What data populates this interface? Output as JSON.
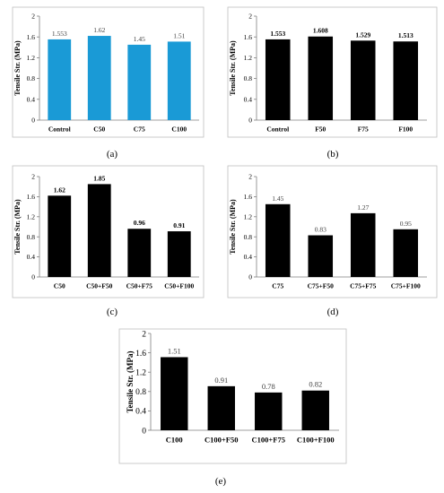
{
  "chart_data": [
    {
      "type": "bar",
      "panel_label": "(a)",
      "categories": [
        "Control",
        "C50",
        "C75",
        "C100"
      ],
      "values": [
        1.553,
        1.62,
        1.45,
        1.51
      ],
      "value_labels": [
        "1.553",
        "1.62",
        "1.45",
        "1.51"
      ],
      "ylabel": "Tensile Str. (MPa)",
      "ylim": [
        0,
        2
      ],
      "yticks": [
        "0",
        "0.4",
        "0.8",
        "1.2",
        "1.6",
        "2"
      ],
      "bar_color": "#1a9ad6",
      "grid": false
    },
    {
      "type": "bar",
      "panel_label": "(b)",
      "categories": [
        "Control",
        "F50",
        "F75",
        "F100"
      ],
      "values": [
        1.553,
        1.608,
        1.529,
        1.513
      ],
      "value_labels": [
        "1.553",
        "1.608",
        "1.529",
        "1.513"
      ],
      "ylabel": "Tensile Str. (MPa)",
      "ylim": [
        0,
        2
      ],
      "yticks": [
        "0",
        "0.4",
        "0.8",
        "1.2",
        "1.6",
        "2"
      ],
      "bar_color": "#000000",
      "grid": false
    },
    {
      "type": "bar",
      "panel_label": "(c)",
      "categories": [
        "C50",
        "C50+F50",
        "C50+F75",
        "C50+F100"
      ],
      "values": [
        1.62,
        1.85,
        0.96,
        0.91
      ],
      "value_labels": [
        "1.62",
        "1.85",
        "0.96",
        "0.91"
      ],
      "ylabel": "Tensile Str. (MPa)",
      "ylim": [
        0,
        2
      ],
      "yticks": [
        "0",
        "0.4",
        "0.8",
        "1.2",
        "1.6",
        "2"
      ],
      "bar_color": "#000000",
      "grid": false
    },
    {
      "type": "bar",
      "panel_label": "(d)",
      "categories": [
        "C75",
        "C75+F50",
        "C75+F75",
        "C75+F100"
      ],
      "values": [
        1.45,
        0.83,
        1.27,
        0.95
      ],
      "value_labels": [
        "1.45",
        "0.83",
        "1.27",
        "0.95"
      ],
      "ylabel": "Tensile Str. (MPa)",
      "ylim": [
        0,
        2
      ],
      "yticks": [
        "0",
        "0.4",
        "0.8",
        "1.2",
        "1.6",
        "2"
      ],
      "bar_color": "#000000",
      "grid": false
    },
    {
      "type": "bar",
      "panel_label": "(e)",
      "categories": [
        "C100",
        "C100+F50",
        "C100+F75",
        "C100+F100"
      ],
      "values": [
        1.51,
        0.91,
        0.78,
        0.82
      ],
      "value_labels": [
        "1.51",
        "0.91",
        "0.78",
        "0.82"
      ],
      "ylabel": "Tensile Str. (MPa)",
      "ylim": [
        0,
        2
      ],
      "yticks": [
        "0",
        "0.4",
        "0.8",
        "1.2",
        "1.6",
        "2"
      ],
      "bar_color": "#000000",
      "grid": false
    }
  ]
}
